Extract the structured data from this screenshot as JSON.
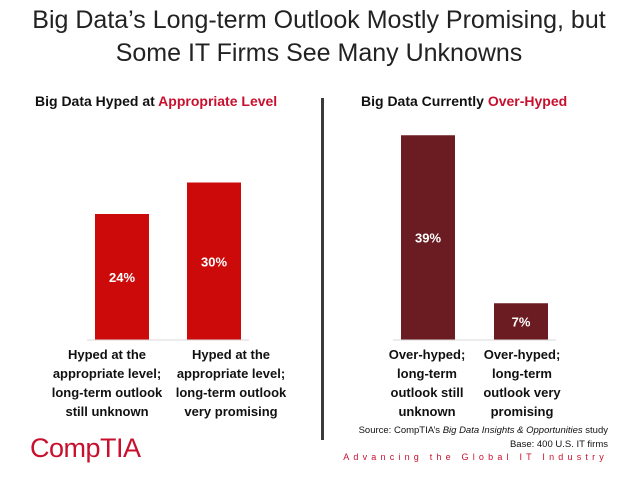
{
  "title": "Big Data’s Long-term Outlook Mostly Promising, but Some IT Firms See Many Unknowns",
  "chart_data": [
    {
      "type": "bar",
      "title_prefix": "Big Data Hyped at ",
      "title_accent": "Appropriate Level",
      "categories": [
        "Hyped at the\nappropriate level;\nlong-term outlook\nstill unknown",
        "Hyped at the\nappropriate level;\nlong-term outlook\nvery promising"
      ],
      "values": [
        24,
        30
      ],
      "labels": [
        "24%",
        "30%"
      ],
      "unit": "%",
      "ylim": [
        0,
        40
      ],
      "color": "#cc0a0a",
      "grid": false
    },
    {
      "type": "bar",
      "title_prefix": "Big Data Currently ",
      "title_accent": "Over-Hyped",
      "categories": [
        "Over-hyped;\nlong-term\noutlook still\nunknown",
        "Over-hyped;\nlong-term\noutlook very\npromising"
      ],
      "values": [
        39,
        7
      ],
      "labels": [
        "39%",
        "7%"
      ],
      "unit": "%",
      "ylim": [
        0,
        40
      ],
      "color": "#6b1c22",
      "grid": false
    }
  ],
  "source": {
    "prefix": "Source: CompTIA’s ",
    "study": "Big Data Insights & Opportunities",
    "suffix": " study",
    "base": "Base: 400 U.S. IT firms"
  },
  "logo": "CompTIA",
  "tagline": "Advancing the Global IT Industry",
  "colors": {
    "accent": "#c8102e",
    "left_bars": "#cc0a0a",
    "right_bars": "#6b1c22"
  }
}
